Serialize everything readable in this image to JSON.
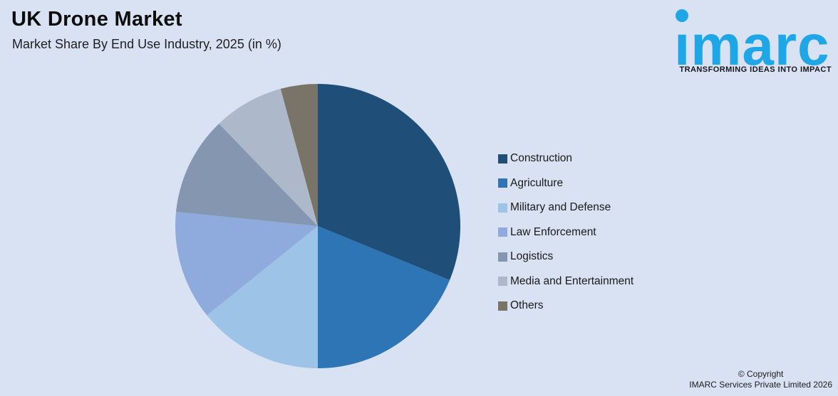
{
  "header": {
    "title": "UK Drone Market",
    "subtitle": "Market Share By End Use Industry, 2025 (in %)"
  },
  "logo": {
    "text": "imarc",
    "tagline": "TRANSFORMING IDEAS INTO IMPACT",
    "brand_color": "#1EA6E6"
  },
  "chart_data": {
    "type": "pie",
    "title": "UK Drone Market",
    "subtitle": "Market Share By End Use Industry, 2025 (in %)",
    "unit": "%",
    "start_angle_deg": 0,
    "direction": "clockwise",
    "legend_position": "right",
    "data_labels_shown": false,
    "categories": [
      "Construction",
      "Agriculture",
      "Military and Defense",
      "Law Enforcement",
      "Logistics",
      "Media and Entertainment",
      "Others"
    ],
    "values": [
      31.2,
      18.8,
      14.2,
      12.4,
      11.2,
      8.0,
      4.2
    ],
    "colors": [
      "#1F4E79",
      "#2E75B6",
      "#9DC3E6",
      "#8FAADC",
      "#8496B0",
      "#ADB9CA",
      "#7A7468"
    ],
    "background_color": "#D9E2F3"
  },
  "footer": {
    "copyright_line1": "© Copyright",
    "copyright_line2": "IMARC Services Private Limited 2026"
  }
}
